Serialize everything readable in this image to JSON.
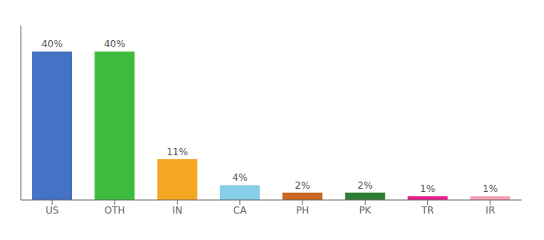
{
  "chart_data": {
    "type": "bar",
    "categories": [
      "US",
      "OTH",
      "IN",
      "CA",
      "PH",
      "PK",
      "TR",
      "IR"
    ],
    "values": [
      40,
      40,
      11,
      4,
      2,
      2,
      1,
      1
    ],
    "value_labels": [
      "40%",
      "40%",
      "11%",
      "4%",
      "2%",
      "2%",
      "1%",
      "1%"
    ],
    "colors": [
      "#4472c4",
      "#3dbb3d",
      "#f5a623",
      "#87ceeb",
      "#c86820",
      "#2e7d32",
      "#e91e8c",
      "#f4a0b5"
    ],
    "ylim": [
      0,
      47
    ],
    "grid": false,
    "data_labels": true,
    "tick_labels": "x"
  }
}
